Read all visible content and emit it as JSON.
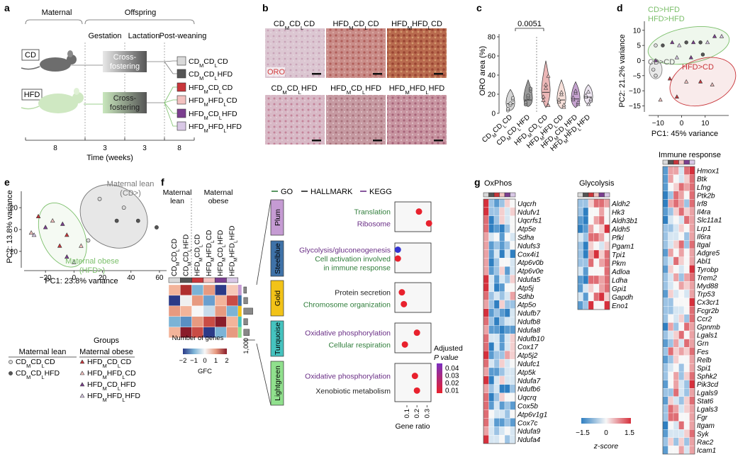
{
  "colors": {
    "cd": "#888888",
    "hfd_green": "#7bbf6a",
    "red": "#c9363b",
    "pink": "#f3c2c0",
    "purple": "#7b3e8f",
    "lavender": "#d9c8e6",
    "plum": "#c59bd3",
    "steelblue": "#3f72a8",
    "gold": "#f2c318",
    "turquoise": "#45c3bf",
    "lightgreen": "#90e08d",
    "go": "#2f7d3a",
    "hallmark": "#222222",
    "kegg": "#6a2e86"
  },
  "panel_a": {
    "label": "a",
    "maternal": "Maternal",
    "offspring": "Offspring",
    "gestation": "Gestation",
    "lactation": "Lactation",
    "postweaning": "Post-weaning",
    "cd": "CD",
    "hfd": "HFD",
    "cross1": "Cross-",
    "fostering1": "fostering",
    "cross2": "Cross-",
    "fostering2": "fostering",
    "groups": [
      [
        "CD",
        "M",
        "CD",
        "L",
        "CD"
      ],
      [
        "CD",
        "M",
        "CD",
        "L",
        "HFD"
      ],
      [
        "HFD",
        "M",
        "CD",
        "L",
        "CD"
      ],
      [
        "HFD",
        "M",
        "HFD",
        "L",
        "CD"
      ],
      [
        "HFD",
        "M",
        "CD",
        "L",
        "HFD"
      ],
      [
        "HFD",
        "M",
        "HFD",
        "L",
        "HFD"
      ]
    ],
    "ticks": [
      "8",
      "3",
      "3",
      "8"
    ],
    "xlabel": "Time (weeks)"
  },
  "panel_b": {
    "label": "b",
    "stain": "ORO",
    "titles": [
      [
        "CD",
        "M",
        "CD",
        "L",
        "CD"
      ],
      [
        "HFD",
        "M",
        "CD",
        "L",
        "CD"
      ],
      [
        "HFD",
        "M",
        "HFD",
        "L",
        "CD"
      ],
      [
        "CD",
        "M",
        "CD",
        "L",
        "HFD"
      ],
      [
        "HFD",
        "M",
        "CD",
        "L",
        "HFD"
      ],
      [
        "HFD",
        "M",
        "HFD",
        "L",
        "HFD"
      ]
    ]
  },
  "panel_c": {
    "label": "c",
    "ylabel": "ORO area (%)",
    "pvalue": "0.0051",
    "yticks": [
      "0",
      "20",
      "40",
      "60",
      "80"
    ],
    "categories": [
      [
        "CD",
        "M",
        "CD",
        "L",
        "CD"
      ],
      [
        "CD",
        "M",
        "CD",
        "L",
        "HFD"
      ],
      [
        "HFD",
        "M",
        "CD",
        "L",
        "CD"
      ],
      [
        "HFD",
        "M",
        "HFD",
        "L",
        "CD"
      ],
      [
        "HFD",
        "M",
        "CD",
        "L",
        "HFD"
      ],
      [
        "HFD",
        "M",
        "HFD",
        "L",
        "HFD"
      ]
    ]
  },
  "panel_d": {
    "label": "d",
    "xlabel": "PC1: 45% variance",
    "ylabel": "PC2: 21.2% variance",
    "xticks": [
      "−10",
      "0",
      "10"
    ],
    "yticks": [
      "10",
      "5",
      "0",
      "−5",
      "−10",
      "−15"
    ],
    "lab_hfd1": "CD>HFD",
    "lab_hfd2": "HFD>HFD",
    "lab_cd": "CD>CD",
    "lab_red": "HFD>CD"
  },
  "panel_e": {
    "label": "e",
    "xlabel": "PC1: 23.8% variance",
    "ylabel": "PC2: 13.8% variance",
    "xticks": [
      "−20",
      "0",
      "20",
      "40",
      "60"
    ],
    "yticks": [
      "20",
      "0",
      "−20"
    ],
    "lean1": "Maternal lean",
    "lean2": "(CD>)",
    "obese1": "Maternal obese",
    "obese2": "(HFD>)",
    "groups_title": "Groups",
    "lean_hdr": "Maternal lean",
    "obese_hdr": "Maternal obese",
    "legend_lean": [
      [
        "CD",
        "M",
        "CD",
        "L",
        "CD"
      ],
      [
        "CD",
        "M",
        "CD",
        "L",
        "HFD"
      ]
    ],
    "legend_obese": [
      [
        "HFD",
        "M",
        "CD",
        "L",
        "CD"
      ],
      [
        "HFD",
        "M",
        "HFD",
        "L",
        "CD"
      ],
      [
        "HFD",
        "M",
        "CD",
        "L",
        "HFD"
      ],
      [
        "HFD",
        "M",
        "HFD",
        "L",
        "HFD"
      ]
    ]
  },
  "panel_f": {
    "label": "f",
    "lean1": "Maternal",
    "lean2": "lean",
    "obese1": "Maternal",
    "obese2": "obese",
    "cols": [
      [
        "CD",
        "M",
        "CD",
        "L",
        "CD"
      ],
      [
        "CD",
        "M",
        "CD",
        "L",
        "HFD"
      ],
      [
        "HFD",
        "M",
        "CD",
        "L",
        "CD"
      ],
      [
        "HFD",
        "M",
        "HFD",
        "L",
        "CD"
      ],
      [
        "HFD",
        "M",
        "CD",
        "L",
        "HFD"
      ],
      [
        "HFD",
        "M",
        "HFD",
        "L",
        "HFD"
      ]
    ],
    "modules": [
      "Plum",
      "Steelblue",
      "Gold",
      "Turquoise",
      "Lightgreen"
    ],
    "legend_go": "GO",
    "legend_hallmark": "HALLMARK",
    "legend_kegg": "KEGG",
    "terms": [
      {
        "module": "Plum",
        "items": [
          {
            "t": "Translation",
            "src": "go",
            "x": 0.22
          },
          {
            "t": "Ribosome",
            "src": "kegg",
            "x": 0.32
          }
        ]
      },
      {
        "module": "Steelblue",
        "items": [
          {
            "t": "Glycolysis/gluconeogenesis",
            "src": "kegg",
            "x": 0.01
          },
          {
            "t": "Cell activation involved",
            "src": "go",
            "x": 0.01
          },
          {
            "t": "in immune response",
            "src": "go",
            "x": 0.01
          }
        ]
      },
      {
        "module": "Gold",
        "items": [
          {
            "t": "Protein secretion",
            "src": "hallmark",
            "x": 0.05
          },
          {
            "t": "Chromosome organization",
            "src": "go",
            "x": 0.07
          }
        ]
      },
      {
        "module": "Turquoise",
        "items": [
          {
            "t": "Oxidative phosphorylation",
            "src": "kegg",
            "x": 0.2
          },
          {
            "t": "Cellular respiration",
            "src": "go",
            "x": 0.08
          }
        ]
      },
      {
        "module": "Lightgreen",
        "items": [
          {
            "t": "Oxidative phosphorylation",
            "src": "kegg",
            "x": 0.18
          },
          {
            "t": "Xenobiotic metabolism",
            "src": "hallmark",
            "x": 0.2
          }
        ]
      }
    ],
    "num_genes": "Number of genes",
    "num_tick": "1,000",
    "gfc": "GFC",
    "gfc_ticks": [
      "−2",
      "−1",
      "0",
      "1",
      "2"
    ],
    "gene_ratio": "Gene ratio",
    "gr_ticks": [
      "0.1",
      "0.2",
      "0.3"
    ],
    "padj1": "Adjusted",
    "padj2": "P value",
    "padj_ticks": [
      "0.04",
      "0.03",
      "0.02",
      "0.01"
    ]
  },
  "panel_g": {
    "label": "g",
    "oxphos_title": "OxPhos",
    "glyc_title": "Glycolysis",
    "immune_title": "Immune response",
    "zscore": "z-score",
    "z_ticks": [
      "−1.5",
      "0",
      "1.5"
    ],
    "oxphos": [
      "Uqcrh",
      "Ndufv1",
      "Uqcrfs1",
      "Atp5e",
      "Sdha",
      "Ndufs3",
      "Cox4i1",
      "Atp6v0b",
      "Atp6v0e",
      "Ndufa5",
      "Atp5j",
      "Sdhb",
      "Atp5o",
      "Ndufb7",
      "Ndufb8",
      "Ndufa8",
      "Ndufb10",
      "Cox17",
      "Atp5j2",
      "Ndufc1",
      "Atp5k",
      "Ndufa7",
      "Ndufb6",
      "Uqcrq",
      "Cox5b",
      "Atp6v1g1",
      "Cox7c",
      "Ndufa9",
      "Ndufa4"
    ],
    "glycolysis": [
      "Aldh2",
      "Hk3",
      "Aldh3b1",
      "Aldh5",
      "Pfkl",
      "Pgam1",
      "Tpi1",
      "Pkm",
      "Adloa",
      "Ldha",
      "Gpi1",
      "Gapdh",
      "Eno1"
    ],
    "immune": [
      "Hmox1",
      "Btk",
      "Lfng",
      "Ptk2b",
      "Irf8",
      "Il4ra",
      "Slc11a1",
      "Lrp1",
      "Il6ra",
      "Itgal",
      "Adgre5",
      "Abl1",
      "Tyrobp",
      "Trem2",
      "Myd88",
      "Trp53",
      "Cx3cr1",
      "Fcgr2b",
      "Ccr2",
      "Gpnmb",
      "Lgals1",
      "Grn",
      "Fes",
      "Relb",
      "Spi1",
      "Sphk2",
      "Pik3cd",
      "Lgals9",
      "Stat6",
      "Lgals3",
      "Fgr",
      "Itgam",
      "Syk",
      "Rac2",
      "Icam1"
    ]
  }
}
